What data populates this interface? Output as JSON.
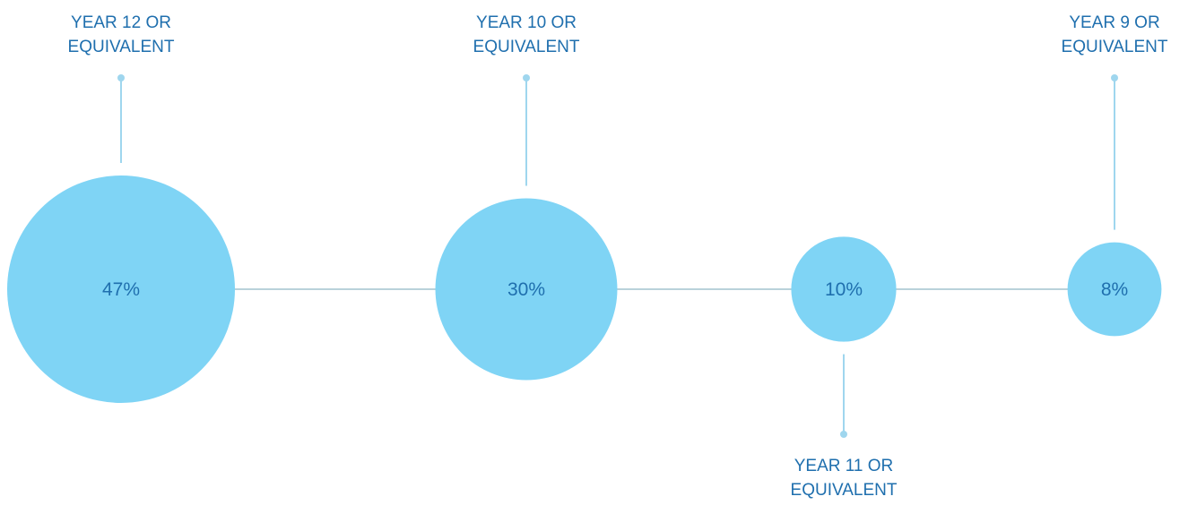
{
  "chart_data": {
    "type": "bubble-timeline",
    "title": "",
    "unit": "%",
    "colors": {
      "bubble": "#7fd4f5",
      "connector": "#9fd6ee",
      "axis": "#8fb6c4",
      "text": "#1f6fae"
    },
    "items": [
      {
        "label_lines": [
          "YEAR 12 OR",
          "EQUIVALENT"
        ],
        "value": 47,
        "value_label": "47%",
        "label_side": "top"
      },
      {
        "label_lines": [
          "YEAR 10 OR",
          "EQUIVALENT"
        ],
        "value": 30,
        "value_label": "30%",
        "label_side": "top"
      },
      {
        "label_lines": [
          "YEAR 11 OR",
          "EQUIVALENT"
        ],
        "value": 10,
        "value_label": "10%",
        "label_side": "bottom"
      },
      {
        "label_lines": [
          "YEAR 9 OR",
          "EQUIVALENT"
        ],
        "value": 8,
        "value_label": "8%",
        "label_side": "top"
      }
    ]
  }
}
